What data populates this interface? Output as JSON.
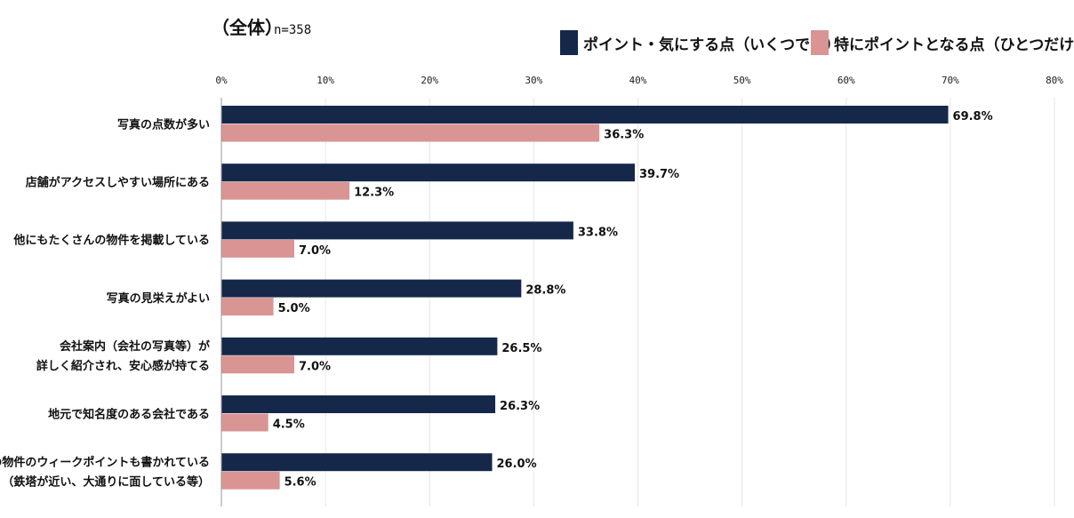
{
  "header": {
    "title": "（全体）",
    "sample": "n=358"
  },
  "colors": {
    "series1": "#15284a",
    "series2": "#d99494",
    "axis": "#999999"
  },
  "chart_data": {
    "type": "bar",
    "orientation": "horizontal",
    "xlim": [
      0,
      80
    ],
    "xticks": [
      "0%",
      "10%",
      "20%",
      "30%",
      "40%",
      "50%",
      "60%",
      "70%",
      "80%"
    ],
    "legend_position": "top-right",
    "categories": [
      [
        "写真の点数が多い"
      ],
      [
        "店舗がアクセスしやすい場所にある"
      ],
      [
        "他にもたくさんの物件を掲載している"
      ],
      [
        "写真の見栄えがよい"
      ],
      [
        "会社案内（会社の写真等）が",
        "詳しく紹介され、安心感が持てる"
      ],
      [
        "地元で知名度のある会社である"
      ],
      [
        "その物件のウィークポイントも書かれている",
        "（鉄塔が近い、大通りに面している等）"
      ]
    ],
    "series": [
      {
        "name": "ポイント・気にする点（いくつでも）",
        "values": [
          69.8,
          39.7,
          33.8,
          28.8,
          26.5,
          26.3,
          26.0
        ],
        "labels": [
          "69.8%",
          "39.7%",
          "33.8%",
          "28.8%",
          "26.5%",
          "26.3%",
          "26.0%"
        ]
      },
      {
        "name": "特にポイントとなる点（ひとつだけ）",
        "values": [
          36.3,
          12.3,
          7.0,
          5.0,
          7.0,
          4.5,
          5.6
        ],
        "labels": [
          "36.3%",
          "12.3%",
          "7.0%",
          "5.0%",
          "7.0%",
          "4.5%",
          "5.6%"
        ]
      }
    ]
  }
}
